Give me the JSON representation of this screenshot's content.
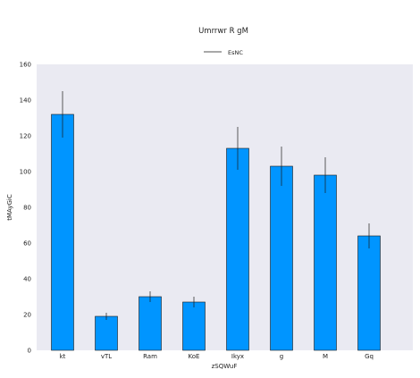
{
  "chart_data": {
    "type": "bar",
    "title": "Umrrwr R gM",
    "xlabel": "zSQWuF",
    "ylabel": "tMAyGiC",
    "categories": [
      "kt",
      "vTL",
      "Ram",
      "KoE",
      "Ikyx",
      "g",
      "M",
      "Gq"
    ],
    "series": [
      {
        "name": "EsNC",
        "values": [
          132,
          19,
          30,
          27,
          113,
          103,
          98,
          64
        ],
        "errors": [
          13,
          2,
          3,
          3,
          12,
          11,
          10,
          7
        ]
      }
    ],
    "ylim": [
      0,
      160
    ],
    "yticks": [
      0,
      20,
      40,
      60,
      80,
      100,
      120,
      140,
      160
    ],
    "grid": false,
    "legend_position": "top-center",
    "colors": {
      "bar": "#0095ff",
      "bar_edge": "#1a1a1a",
      "error_bar": "#1a1a1a",
      "plot_background": "#eaeaf2",
      "legend_line": "#1a1a1a"
    }
  }
}
